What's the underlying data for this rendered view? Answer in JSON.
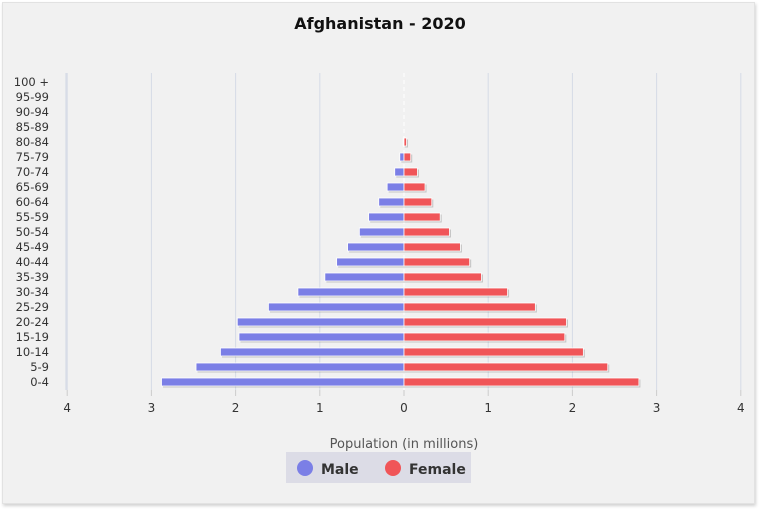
{
  "chart_data": {
    "type": "bar",
    "orientation": "horizontal",
    "title": "Afghanistan - 2020",
    "xlabel": "Population (in millions)",
    "ylabel": "",
    "categories": [
      "0-4",
      "5-9",
      "10-14",
      "15-19",
      "20-24",
      "25-29",
      "30-34",
      "35-39",
      "40-44",
      "45-49",
      "50-54",
      "55-59",
      "60-64",
      "65-69",
      "70-74",
      "75-79",
      "80-84",
      "85-89",
      "90-94",
      "95-99",
      "100 +"
    ],
    "x_ticks": [
      4,
      3,
      2,
      1,
      0,
      1,
      2,
      3,
      4
    ],
    "xlim": [
      -4,
      4
    ],
    "grid": true,
    "legend_position": "bottom",
    "series": [
      {
        "name": "Male",
        "color": "#7b7fe6",
        "values": [
          2.88,
          2.47,
          2.18,
          1.96,
          1.98,
          1.61,
          1.26,
          0.94,
          0.8,
          0.67,
          0.53,
          0.42,
          0.3,
          0.2,
          0.11,
          0.05,
          0.01,
          0,
          0,
          0,
          0
        ]
      },
      {
        "name": "Female",
        "color": "#f05558",
        "values": [
          2.79,
          2.42,
          2.13,
          1.91,
          1.93,
          1.56,
          1.23,
          0.92,
          0.78,
          0.67,
          0.54,
          0.43,
          0.33,
          0.25,
          0.16,
          0.08,
          0.03,
          0,
          0,
          0,
          0
        ]
      }
    ]
  }
}
